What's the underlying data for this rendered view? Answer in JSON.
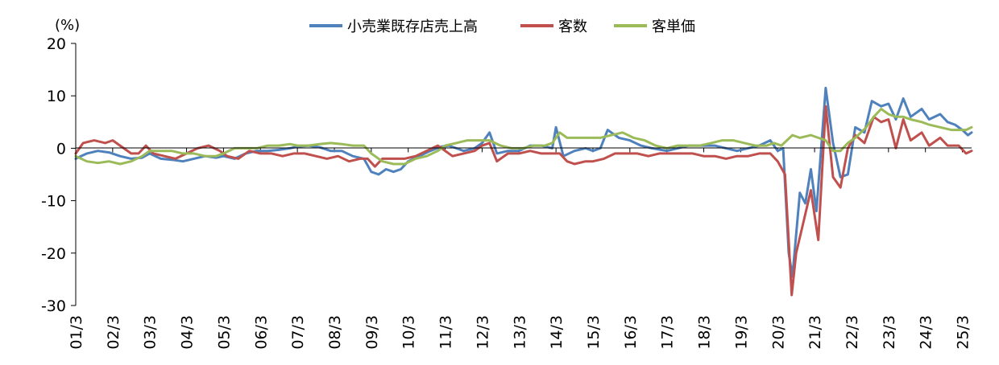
{
  "chart_data": {
    "type": "line",
    "unit_label": "(%)",
    "ylim": [
      -30,
      20
    ],
    "y_ticks": [
      "20",
      "10",
      "0",
      "-10",
      "-20",
      "-30"
    ],
    "x_ticks": [
      "01/3",
      "02/3",
      "03/3",
      "04/3",
      "05/3",
      "06/3",
      "07/3",
      "08/3",
      "09/3",
      "10/3",
      "11/3",
      "12/3",
      "13/3",
      "14/3",
      "15/3",
      "16/3",
      "17/3",
      "18/3",
      "19/3",
      "20/3",
      "21/3",
      "22/3",
      "23/3",
      "24/3",
      "25/3"
    ],
    "x_range": [
      2001.0,
      2025.25
    ],
    "grid": false,
    "legend_position": "top",
    "series": [
      {
        "name": "小売業既存店売上高",
        "color": "#4f81bd",
        "points": [
          [
            2001.0,
            -2.0
          ],
          [
            2001.3,
            -1.0
          ],
          [
            2001.6,
            -0.5
          ],
          [
            2001.9,
            -0.8
          ],
          [
            2002.2,
            -1.5
          ],
          [
            2002.5,
            -2.0
          ],
          [
            2002.8,
            -1.8
          ],
          [
            2003.0,
            -1.0
          ],
          [
            2003.3,
            -2.0
          ],
          [
            2003.6,
            -2.2
          ],
          [
            2003.9,
            -2.5
          ],
          [
            2004.2,
            -2.0
          ],
          [
            2004.5,
            -1.5
          ],
          [
            2004.8,
            -1.8
          ],
          [
            2005.0,
            -1.5
          ],
          [
            2005.3,
            -2.0
          ],
          [
            2005.6,
            -1.0
          ],
          [
            2005.9,
            -0.5
          ],
          [
            2006.2,
            -0.5
          ],
          [
            2006.5,
            -0.3
          ],
          [
            2006.8,
            0.0
          ],
          [
            2007.0,
            0.3
          ],
          [
            2007.3,
            0.5
          ],
          [
            2007.6,
            0.2
          ],
          [
            2007.9,
            -0.5
          ],
          [
            2008.2,
            -0.5
          ],
          [
            2008.5,
            -1.5
          ],
          [
            2008.8,
            -2.0
          ],
          [
            2009.0,
            -4.5
          ],
          [
            2009.2,
            -5.0
          ],
          [
            2009.4,
            -4.0
          ],
          [
            2009.6,
            -4.5
          ],
          [
            2009.8,
            -4.0
          ],
          [
            2010.0,
            -2.5
          ],
          [
            2010.3,
            -1.5
          ],
          [
            2010.6,
            -0.5
          ],
          [
            2010.9,
            0.3
          ],
          [
            2011.1,
            0.5
          ],
          [
            2011.3,
            0.0
          ],
          [
            2011.5,
            -0.5
          ],
          [
            2011.8,
            0.0
          ],
          [
            2012.0,
            1.0
          ],
          [
            2012.2,
            3.0
          ],
          [
            2012.4,
            -1.0
          ],
          [
            2012.7,
            -0.5
          ],
          [
            2013.0,
            -0.5
          ],
          [
            2013.3,
            0.5
          ],
          [
            2013.6,
            0.5
          ],
          [
            2013.9,
            0.0
          ],
          [
            2014.0,
            4.0
          ],
          [
            2014.2,
            -1.5
          ],
          [
            2014.5,
            -0.5
          ],
          [
            2014.8,
            0.0
          ],
          [
            2015.0,
            -0.5
          ],
          [
            2015.2,
            0.0
          ],
          [
            2015.4,
            3.5
          ],
          [
            2015.7,
            2.0
          ],
          [
            2016.0,
            1.5
          ],
          [
            2016.3,
            0.5
          ],
          [
            2016.6,
            0.0
          ],
          [
            2017.0,
            -0.5
          ],
          [
            2017.3,
            0.0
          ],
          [
            2017.6,
            0.5
          ],
          [
            2018.0,
            0.5
          ],
          [
            2018.3,
            0.5
          ],
          [
            2018.6,
            0.0
          ],
          [
            2018.9,
            -0.5
          ],
          [
            2019.2,
            0.0
          ],
          [
            2019.5,
            0.5
          ],
          [
            2019.8,
            1.5
          ],
          [
            2020.0,
            -0.5
          ],
          [
            2020.15,
            0.0
          ],
          [
            2020.3,
            -20.0
          ],
          [
            2020.4,
            -24.5
          ],
          [
            2020.6,
            -8.5
          ],
          [
            2020.75,
            -10.5
          ],
          [
            2020.9,
            -4.0
          ],
          [
            2021.05,
            -12.0
          ],
          [
            2021.3,
            11.5
          ],
          [
            2021.5,
            1.0
          ],
          [
            2021.7,
            -5.5
          ],
          [
            2021.9,
            -5.0
          ],
          [
            2022.1,
            4.0
          ],
          [
            2022.35,
            3.0
          ],
          [
            2022.55,
            9.0
          ],
          [
            2022.8,
            8.0
          ],
          [
            2023.0,
            8.5
          ],
          [
            2023.2,
            5.5
          ],
          [
            2023.4,
            9.5
          ],
          [
            2023.6,
            6.0
          ],
          [
            2023.9,
            7.5
          ],
          [
            2024.1,
            5.5
          ],
          [
            2024.4,
            6.5
          ],
          [
            2024.6,
            5.0
          ],
          [
            2024.8,
            4.5
          ],
          [
            2025.0,
            3.5
          ],
          [
            2025.15,
            2.5
          ],
          [
            2025.25,
            3.0
          ]
        ]
      },
      {
        "name": "客数",
        "color": "#c0504d",
        "points": [
          [
            2001.0,
            -1.0
          ],
          [
            2001.2,
            1.0
          ],
          [
            2001.5,
            1.5
          ],
          [
            2001.8,
            1.0
          ],
          [
            2002.0,
            1.5
          ],
          [
            2002.3,
            0.0
          ],
          [
            2002.5,
            -1.0
          ],
          [
            2002.7,
            -1.0
          ],
          [
            2002.9,
            0.5
          ],
          [
            2003.1,
            -1.0
          ],
          [
            2003.4,
            -1.5
          ],
          [
            2003.7,
            -2.0
          ],
          [
            2004.0,
            -1.0
          ],
          [
            2004.3,
            0.0
          ],
          [
            2004.6,
            0.5
          ],
          [
            2004.9,
            -0.5
          ],
          [
            2005.1,
            -1.5
          ],
          [
            2005.4,
            -2.0
          ],
          [
            2005.7,
            -0.5
          ],
          [
            2006.0,
            -1.0
          ],
          [
            2006.3,
            -1.0
          ],
          [
            2006.6,
            -1.5
          ],
          [
            2006.9,
            -1.0
          ],
          [
            2007.2,
            -1.0
          ],
          [
            2007.5,
            -1.5
          ],
          [
            2007.8,
            -2.0
          ],
          [
            2008.1,
            -1.5
          ],
          [
            2008.4,
            -2.5
          ],
          [
            2008.7,
            -2.0
          ],
          [
            2008.9,
            -2.0
          ],
          [
            2009.1,
            -3.5
          ],
          [
            2009.3,
            -2.0
          ],
          [
            2009.6,
            -2.0
          ],
          [
            2009.9,
            -2.0
          ],
          [
            2010.2,
            -1.5
          ],
          [
            2010.5,
            -0.5
          ],
          [
            2010.8,
            0.5
          ],
          [
            2011.0,
            -0.5
          ],
          [
            2011.2,
            -1.5
          ],
          [
            2011.5,
            -1.0
          ],
          [
            2011.8,
            -0.5
          ],
          [
            2012.0,
            0.5
          ],
          [
            2012.2,
            1.0
          ],
          [
            2012.4,
            -2.5
          ],
          [
            2012.7,
            -1.0
          ],
          [
            2013.0,
            -1.0
          ],
          [
            2013.3,
            -0.5
          ],
          [
            2013.6,
            -1.0
          ],
          [
            2013.9,
            -1.0
          ],
          [
            2014.1,
            -1.0
          ],
          [
            2014.3,
            -2.5
          ],
          [
            2014.5,
            -3.0
          ],
          [
            2014.8,
            -2.5
          ],
          [
            2015.0,
            -2.5
          ],
          [
            2015.3,
            -2.0
          ],
          [
            2015.6,
            -1.0
          ],
          [
            2015.9,
            -1.0
          ],
          [
            2016.2,
            -1.0
          ],
          [
            2016.5,
            -1.5
          ],
          [
            2016.8,
            -1.0
          ],
          [
            2017.1,
            -1.0
          ],
          [
            2017.4,
            -1.0
          ],
          [
            2017.7,
            -1.0
          ],
          [
            2018.0,
            -1.5
          ],
          [
            2018.3,
            -1.5
          ],
          [
            2018.6,
            -2.0
          ],
          [
            2018.9,
            -1.5
          ],
          [
            2019.2,
            -1.5
          ],
          [
            2019.5,
            -1.0
          ],
          [
            2019.8,
            -1.0
          ],
          [
            2020.0,
            -2.5
          ],
          [
            2020.2,
            -5.0
          ],
          [
            2020.38,
            -28.0
          ],
          [
            2020.5,
            -20.0
          ],
          [
            2020.7,
            -14.0
          ],
          [
            2020.9,
            -8.0
          ],
          [
            2021.1,
            -17.5
          ],
          [
            2021.3,
            8.0
          ],
          [
            2021.5,
            -5.5
          ],
          [
            2021.7,
            -7.5
          ],
          [
            2021.9,
            0.0
          ],
          [
            2022.1,
            2.5
          ],
          [
            2022.35,
            1.0
          ],
          [
            2022.6,
            6.0
          ],
          [
            2022.8,
            5.0
          ],
          [
            2023.0,
            5.5
          ],
          [
            2023.2,
            0.0
          ],
          [
            2023.4,
            5.5
          ],
          [
            2023.6,
            1.5
          ],
          [
            2023.9,
            3.0
          ],
          [
            2024.1,
            0.5
          ],
          [
            2024.4,
            2.0
          ],
          [
            2024.6,
            0.5
          ],
          [
            2024.9,
            0.5
          ],
          [
            2025.1,
            -1.0
          ],
          [
            2025.25,
            -0.5
          ]
        ]
      },
      {
        "name": "客単価",
        "color": "#9bbb59",
        "points": [
          [
            2001.0,
            -1.5
          ],
          [
            2001.3,
            -2.5
          ],
          [
            2001.6,
            -2.8
          ],
          [
            2001.9,
            -2.5
          ],
          [
            2002.2,
            -3.0
          ],
          [
            2002.5,
            -2.5
          ],
          [
            2002.8,
            -1.5
          ],
          [
            2003.0,
            -0.5
          ],
          [
            2003.3,
            -0.5
          ],
          [
            2003.6,
            -0.5
          ],
          [
            2003.9,
            -1.0
          ],
          [
            2004.2,
            -1.0
          ],
          [
            2004.5,
            -1.5
          ],
          [
            2004.8,
            -1.5
          ],
          [
            2005.0,
            -1.0
          ],
          [
            2005.3,
            0.0
          ],
          [
            2005.6,
            0.0
          ],
          [
            2005.9,
            0.0
          ],
          [
            2006.2,
            0.5
          ],
          [
            2006.5,
            0.5
          ],
          [
            2006.8,
            0.8
          ],
          [
            2007.0,
            0.5
          ],
          [
            2007.3,
            0.5
          ],
          [
            2007.6,
            0.8
          ],
          [
            2007.9,
            1.0
          ],
          [
            2008.2,
            0.8
          ],
          [
            2008.5,
            0.5
          ],
          [
            2008.8,
            0.5
          ],
          [
            2009.0,
            -1.0
          ],
          [
            2009.3,
            -2.5
          ],
          [
            2009.6,
            -3.0
          ],
          [
            2009.9,
            -3.0
          ],
          [
            2010.2,
            -2.0
          ],
          [
            2010.5,
            -1.5
          ],
          [
            2010.8,
            -0.5
          ],
          [
            2011.0,
            0.5
          ],
          [
            2011.3,
            1.0
          ],
          [
            2011.6,
            1.5
          ],
          [
            2011.9,
            1.5
          ],
          [
            2012.2,
            1.5
          ],
          [
            2012.5,
            0.5
          ],
          [
            2012.8,
            0.0
          ],
          [
            2013.1,
            0.0
          ],
          [
            2013.4,
            0.5
          ],
          [
            2013.7,
            0.5
          ],
          [
            2013.9,
            1.0
          ],
          [
            2014.1,
            3.0
          ],
          [
            2014.3,
            2.0
          ],
          [
            2014.6,
            2.0
          ],
          [
            2014.9,
            2.0
          ],
          [
            2015.2,
            2.0
          ],
          [
            2015.5,
            2.5
          ],
          [
            2015.8,
            3.0
          ],
          [
            2016.1,
            2.0
          ],
          [
            2016.4,
            1.5
          ],
          [
            2016.7,
            0.5
          ],
          [
            2017.0,
            0.0
          ],
          [
            2017.3,
            0.5
          ],
          [
            2017.6,
            0.5
          ],
          [
            2017.9,
            0.5
          ],
          [
            2018.2,
            1.0
          ],
          [
            2018.5,
            1.5
          ],
          [
            2018.8,
            1.5
          ],
          [
            2019.1,
            1.0
          ],
          [
            2019.4,
            0.5
          ],
          [
            2019.7,
            0.5
          ],
          [
            2019.9,
            1.0
          ],
          [
            2020.1,
            0.5
          ],
          [
            2020.4,
            2.5
          ],
          [
            2020.6,
            2.0
          ],
          [
            2020.9,
            2.5
          ],
          [
            2021.1,
            2.0
          ],
          [
            2021.3,
            1.5
          ],
          [
            2021.5,
            -0.5
          ],
          [
            2021.7,
            -0.5
          ],
          [
            2021.9,
            1.0
          ],
          [
            2022.1,
            2.0
          ],
          [
            2022.4,
            4.0
          ],
          [
            2022.6,
            6.0
          ],
          [
            2022.8,
            7.5
          ],
          [
            2023.0,
            6.5
          ],
          [
            2023.2,
            6.0
          ],
          [
            2023.4,
            6.0
          ],
          [
            2023.6,
            5.5
          ],
          [
            2023.9,
            5.0
          ],
          [
            2024.1,
            4.5
          ],
          [
            2024.4,
            4.0
          ],
          [
            2024.7,
            3.5
          ],
          [
            2024.9,
            3.5
          ],
          [
            2025.1,
            3.5
          ],
          [
            2025.25,
            4.0
          ]
        ]
      }
    ]
  }
}
